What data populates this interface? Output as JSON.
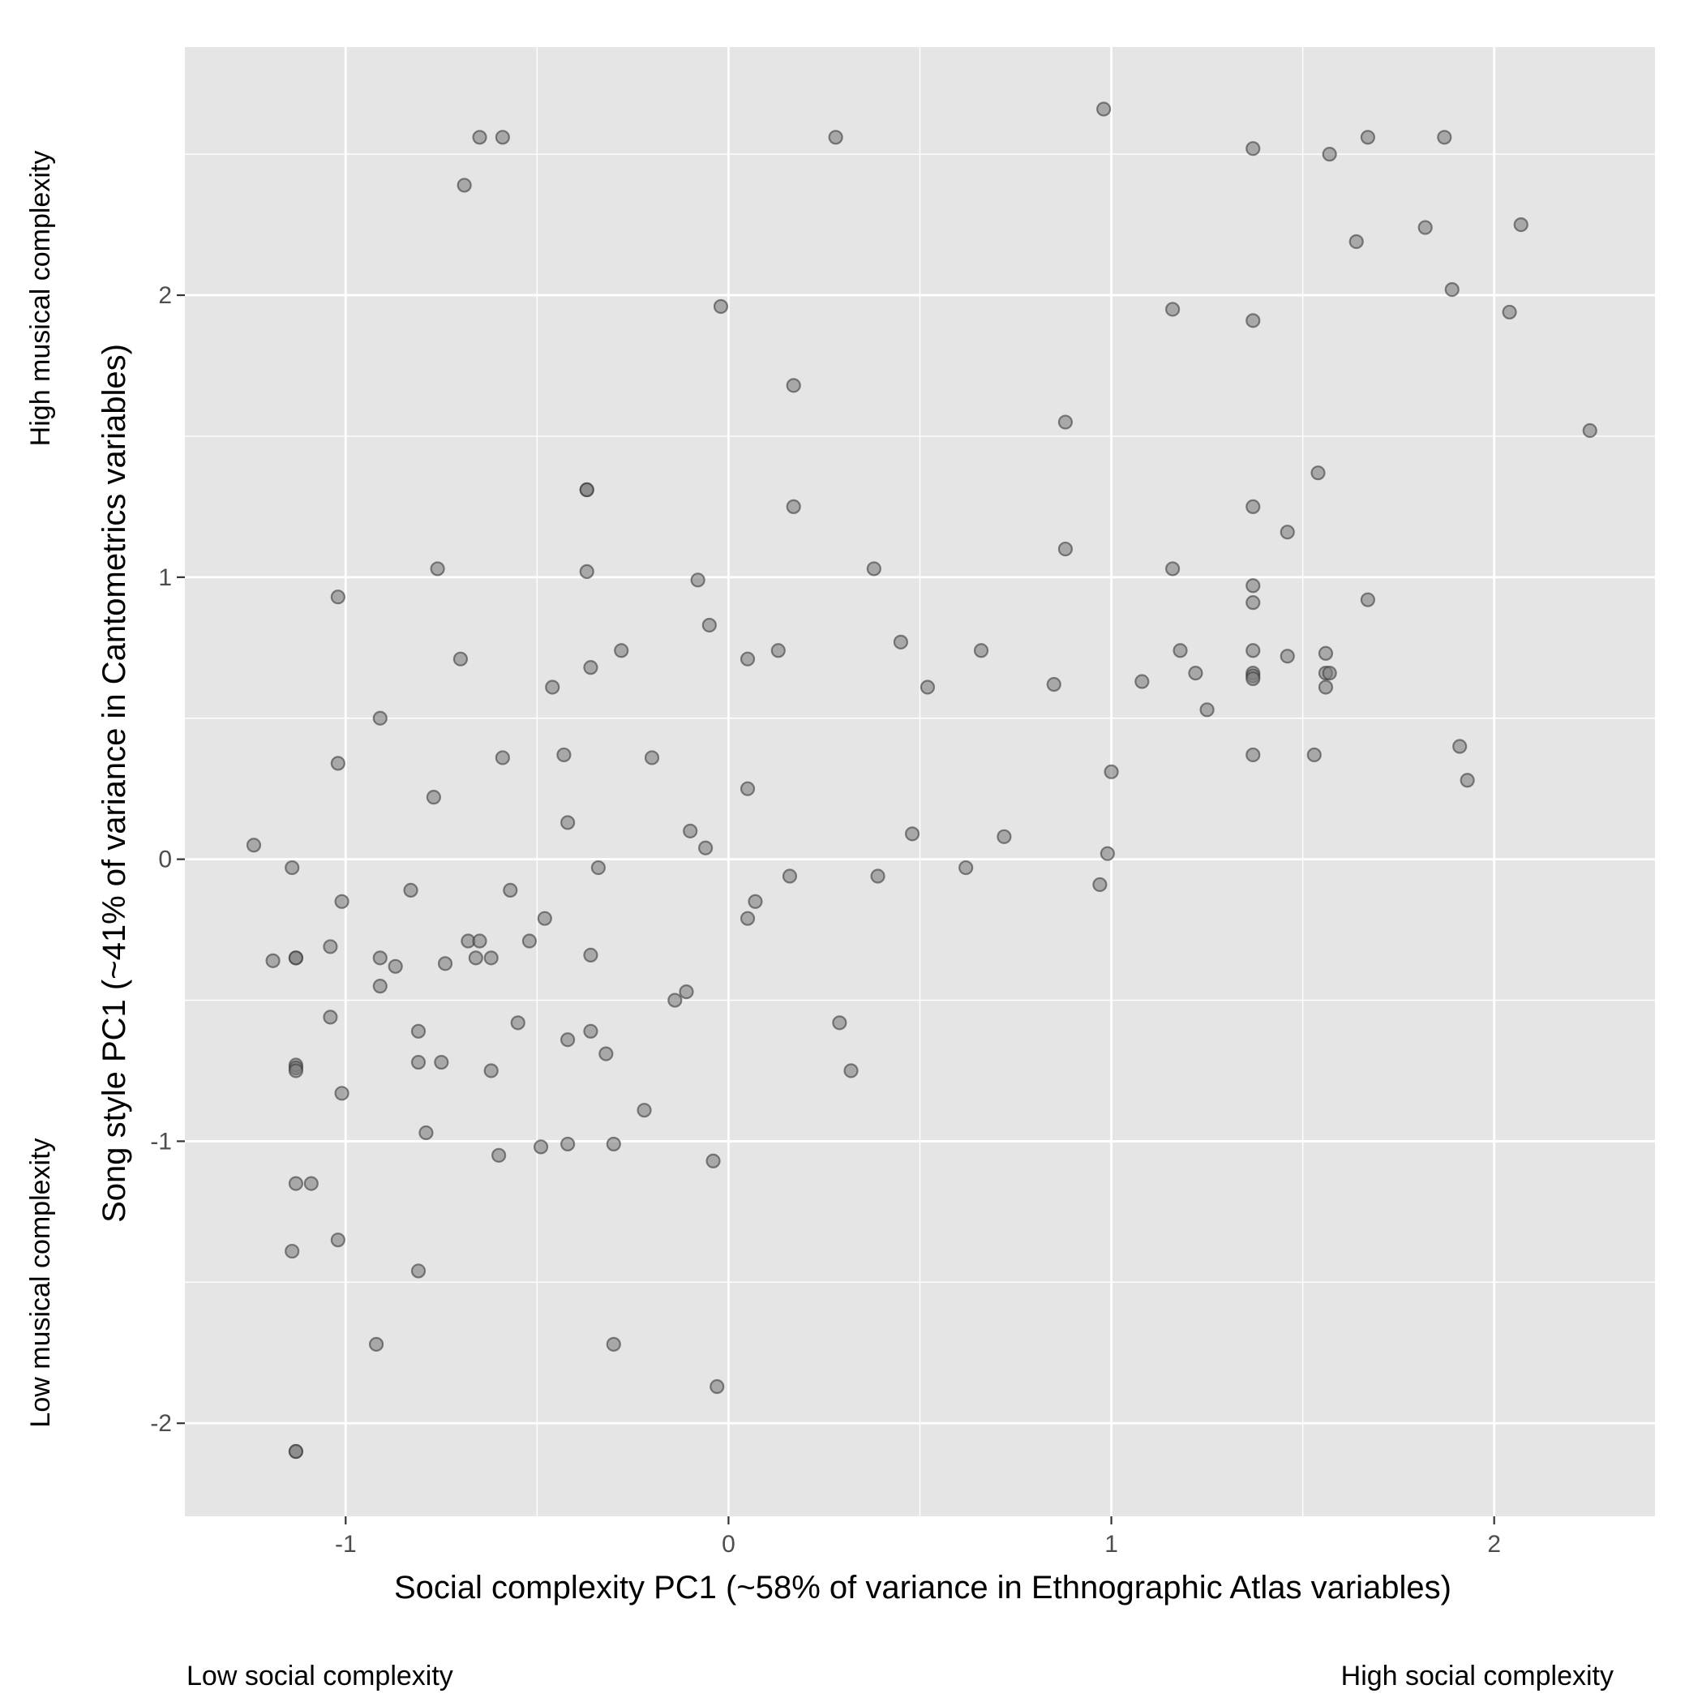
{
  "chart_data": {
    "type": "scatter",
    "xlabel": "Social complexity PC1 (~58% of variance in Ethnographic Atlas variables)",
    "ylabel": "Song style PC1 (~41% of variance in Cantometrics variables)",
    "x_low_label": "Low social complexity",
    "x_high_label": "High social complexity",
    "y_low_label": "Low musical complexity",
    "y_high_label": "High musical complexity",
    "xlim": [
      -1.42,
      2.42
    ],
    "ylim": [
      -2.33,
      2.88
    ],
    "x_ticks": [
      -1,
      0,
      1,
      2
    ],
    "y_ticks": [
      -2,
      -1,
      0,
      1,
      2
    ],
    "x_tick_labels": [
      "-1",
      "0",
      "1",
      "2"
    ],
    "y_tick_labels": [
      "-2",
      "-1",
      "0",
      "1",
      "2"
    ],
    "grid": true,
    "colors": {
      "panel": "#e5e5e5",
      "grid": "#ffffff",
      "point_fill": "#7f7f7f",
      "point_stroke": "#3a3a3a",
      "text": "#000000",
      "tick_text": "#4d4d4d"
    },
    "points": [
      [
        -0.65,
        2.56
      ],
      [
        -0.59,
        2.56
      ],
      [
        -0.69,
        2.39
      ],
      [
        0.28,
        2.56
      ],
      [
        0.98,
        2.66
      ],
      [
        1.37,
        2.52
      ],
      [
        1.57,
        2.5
      ],
      [
        1.67,
        2.56
      ],
      [
        1.87,
        2.56
      ],
      [
        1.82,
        2.24
      ],
      [
        2.07,
        2.25
      ],
      [
        1.64,
        2.19
      ],
      [
        1.89,
        2.02
      ],
      [
        2.04,
        1.94
      ],
      [
        -0.02,
        1.96
      ],
      [
        1.16,
        1.95
      ],
      [
        1.37,
        1.91
      ],
      [
        0.17,
        1.68
      ],
      [
        0.88,
        1.55
      ],
      [
        2.25,
        1.52
      ],
      [
        1.54,
        1.37
      ],
      [
        -0.37,
        1.31
      ],
      [
        -0.37,
        1.31
      ],
      [
        0.17,
        1.25
      ],
      [
        1.37,
        1.25
      ],
      [
        1.46,
        1.16
      ],
      [
        0.88,
        1.1
      ],
      [
        -0.76,
        1.03
      ],
      [
        0.38,
        1.03
      ],
      [
        1.16,
        1.03
      ],
      [
        -0.37,
        1.02
      ],
      [
        -0.08,
        0.99
      ],
      [
        1.37,
        0.97
      ],
      [
        -1.02,
        0.93
      ],
      [
        1.37,
        0.91
      ],
      [
        1.67,
        0.92
      ],
      [
        -0.05,
        0.83
      ],
      [
        0.45,
        0.77
      ],
      [
        -0.28,
        0.74
      ],
      [
        0.13,
        0.74
      ],
      [
        0.66,
        0.74
      ],
      [
        1.18,
        0.74
      ],
      [
        1.37,
        0.74
      ],
      [
        0.05,
        0.71
      ],
      [
        -0.7,
        0.71
      ],
      [
        1.46,
        0.72
      ],
      [
        1.56,
        0.73
      ],
      [
        -0.36,
        0.68
      ],
      [
        1.22,
        0.66
      ],
      [
        1.37,
        0.66
      ],
      [
        1.37,
        0.65
      ],
      [
        1.37,
        0.64
      ],
      [
        1.56,
        0.66
      ],
      [
        1.57,
        0.66
      ],
      [
        1.08,
        0.63
      ],
      [
        0.85,
        0.62
      ],
      [
        -0.46,
        0.61
      ],
      [
        0.52,
        0.61
      ],
      [
        1.56,
        0.61
      ],
      [
        1.25,
        0.53
      ],
      [
        -0.91,
        0.5
      ],
      [
        1.91,
        0.4
      ],
      [
        -0.43,
        0.37
      ],
      [
        1.37,
        0.37
      ],
      [
        1.53,
        0.37
      ],
      [
        -0.59,
        0.36
      ],
      [
        -0.2,
        0.36
      ],
      [
        -1.02,
        0.34
      ],
      [
        1.0,
        0.31
      ],
      [
        1.93,
        0.28
      ],
      [
        0.05,
        0.25
      ],
      [
        -0.77,
        0.22
      ],
      [
        -0.42,
        0.13
      ],
      [
        -0.1,
        0.1
      ],
      [
        0.48,
        0.09
      ],
      [
        0.72,
        0.08
      ],
      [
        -1.24,
        0.05
      ],
      [
        -0.06,
        0.04
      ],
      [
        0.99,
        0.02
      ],
      [
        -1.14,
        -0.03
      ],
      [
        -0.34,
        -0.03
      ],
      [
        0.62,
        -0.03
      ],
      [
        0.16,
        -0.06
      ],
      [
        0.39,
        -0.06
      ],
      [
        0.97,
        -0.09
      ],
      [
        -0.83,
        -0.11
      ],
      [
        -0.57,
        -0.11
      ],
      [
        -1.01,
        -0.15
      ],
      [
        0.07,
        -0.15
      ],
      [
        -0.48,
        -0.21
      ],
      [
        0.05,
        -0.21
      ],
      [
        -0.68,
        -0.29
      ],
      [
        -0.65,
        -0.29
      ],
      [
        -0.52,
        -0.29
      ],
      [
        -1.04,
        -0.31
      ],
      [
        -1.19,
        -0.36
      ],
      [
        -1.13,
        -0.35
      ],
      [
        -1.13,
        -0.35
      ],
      [
        -0.91,
        -0.35
      ],
      [
        -0.66,
        -0.35
      ],
      [
        -0.62,
        -0.35
      ],
      [
        -0.36,
        -0.34
      ],
      [
        -0.87,
        -0.38
      ],
      [
        -0.74,
        -0.37
      ],
      [
        -0.91,
        -0.45
      ],
      [
        -0.11,
        -0.47
      ],
      [
        -0.14,
        -0.5
      ],
      [
        -1.04,
        -0.56
      ],
      [
        -0.55,
        -0.58
      ],
      [
        0.29,
        -0.58
      ],
      [
        -0.81,
        -0.61
      ],
      [
        -0.36,
        -0.61
      ],
      [
        -0.42,
        -0.64
      ],
      [
        -0.32,
        -0.69
      ],
      [
        -0.81,
        -0.72
      ],
      [
        -0.75,
        -0.72
      ],
      [
        -1.13,
        -0.73
      ],
      [
        -1.13,
        -0.74
      ],
      [
        -1.13,
        -0.75
      ],
      [
        -0.62,
        -0.75
      ],
      [
        0.32,
        -0.75
      ],
      [
        -1.01,
        -0.83
      ],
      [
        -0.22,
        -0.89
      ],
      [
        -0.79,
        -0.97
      ],
      [
        -0.42,
        -1.01
      ],
      [
        -0.3,
        -1.01
      ],
      [
        -0.49,
        -1.02
      ],
      [
        -0.6,
        -1.05
      ],
      [
        -0.04,
        -1.07
      ],
      [
        -1.13,
        -1.15
      ],
      [
        -1.09,
        -1.15
      ],
      [
        -1.02,
        -1.35
      ],
      [
        -1.14,
        -1.39
      ],
      [
        -0.81,
        -1.46
      ],
      [
        -0.92,
        -1.72
      ],
      [
        -0.3,
        -1.72
      ],
      [
        -0.03,
        -1.87
      ],
      [
        -1.13,
        -2.1
      ],
      [
        -1.13,
        -2.1
      ]
    ]
  }
}
